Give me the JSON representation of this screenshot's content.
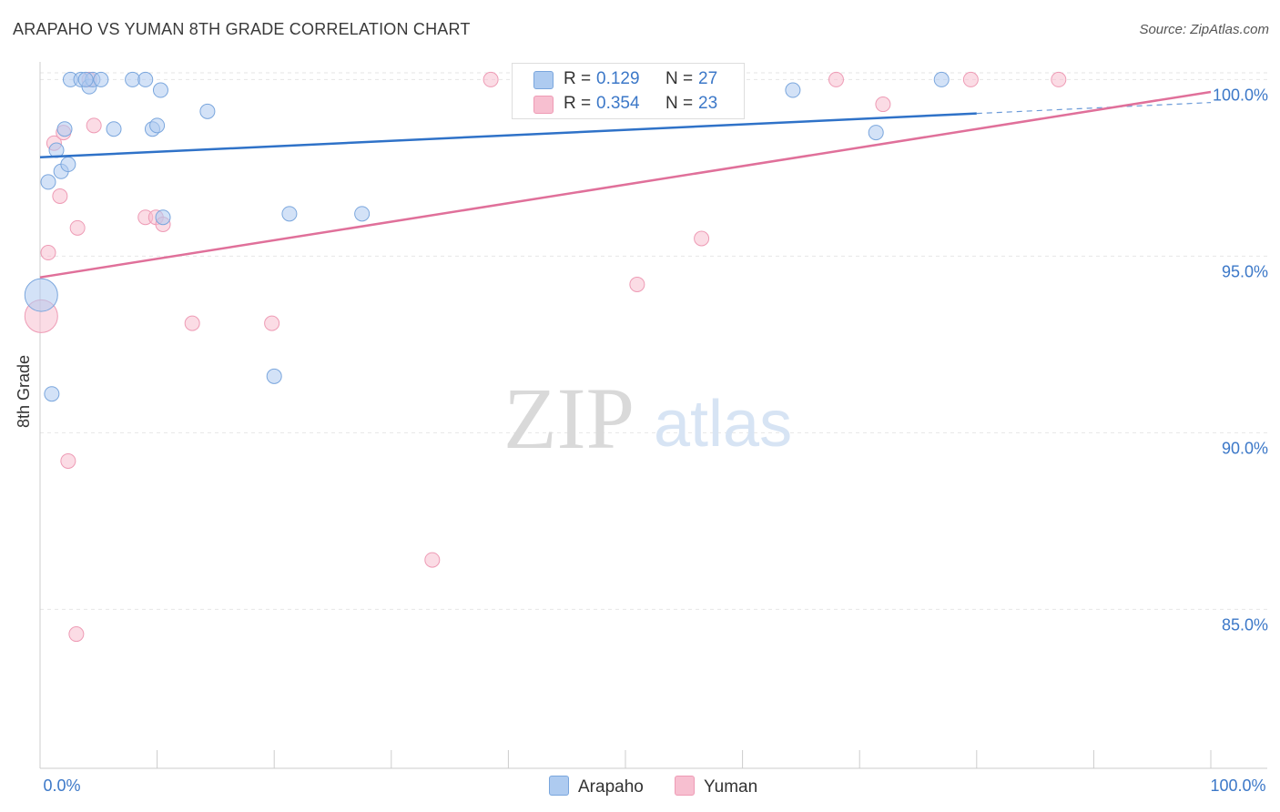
{
  "header": {
    "title": "ARAPAHO VS YUMAN 8TH GRADE CORRELATION CHART",
    "source": "Source: ZipAtlas.com"
  },
  "watermark": {
    "zip": "ZIP",
    "atlas": "atlas"
  },
  "legend": {
    "r_label": "R =",
    "n_label": "N =",
    "arapaho": {
      "r": "0.129",
      "n": "27"
    },
    "yuman": {
      "r": "0.354",
      "n": "23"
    }
  },
  "colors": {
    "arapaho_fill": "#aecbf0",
    "arapaho_stroke": "#7aa6dd",
    "arapaho_line": "#2f72c8",
    "yuman_fill": "#f7bfd0",
    "yuman_stroke": "#ee9bb5",
    "yuman_line": "#e0709a",
    "axis_text": "#3c78c8",
    "grid": "#e6e6e6"
  },
  "chart_data": {
    "type": "scatter",
    "title": "ARAPAHO VS YUMAN 8TH GRADE CORRELATION CHART",
    "xlabel": "",
    "ylabel": "8th Grade",
    "xlim": [
      0,
      100
    ],
    "ylim": [
      80.5,
      100.5
    ],
    "x_tick_labels": [
      "0.0%",
      "100.0%"
    ],
    "y_ticks": [
      85,
      90,
      95,
      100
    ],
    "y_tick_labels": [
      "85.0%",
      "90.0%",
      "95.0%",
      "100.0%"
    ],
    "series": [
      {
        "name": "Arapaho",
        "R": 0.129,
        "N": 27,
        "trend": {
          "x0": 0,
          "y0": 97.8,
          "x1": 100,
          "y1": 99.35,
          "solid_until_x": 80
        },
        "points": [
          {
            "x": 0.1,
            "y": 93.9,
            "big": true
          },
          {
            "x": 0.7,
            "y": 97.1
          },
          {
            "x": 1.0,
            "y": 91.1
          },
          {
            "x": 1.4,
            "y": 98.0
          },
          {
            "x": 1.8,
            "y": 97.4
          },
          {
            "x": 2.1,
            "y": 98.6
          },
          {
            "x": 2.4,
            "y": 97.6
          },
          {
            "x": 2.6,
            "y": 100.0
          },
          {
            "x": 3.5,
            "y": 100.0
          },
          {
            "x": 4.2,
            "y": 99.8
          },
          {
            "x": 4.5,
            "y": 100.0
          },
          {
            "x": 5.2,
            "y": 100.0
          },
          {
            "x": 6.3,
            "y": 98.6
          },
          {
            "x": 7.9,
            "y": 100.0
          },
          {
            "x": 9.0,
            "y": 100.0
          },
          {
            "x": 9.6,
            "y": 98.6
          },
          {
            "x": 10.0,
            "y": 98.7
          },
          {
            "x": 10.3,
            "y": 99.7
          },
          {
            "x": 10.5,
            "y": 96.1
          },
          {
            "x": 14.3,
            "y": 99.1
          },
          {
            "x": 20.0,
            "y": 91.6
          },
          {
            "x": 21.3,
            "y": 96.2
          },
          {
            "x": 27.5,
            "y": 96.2
          },
          {
            "x": 64.3,
            "y": 99.7
          },
          {
            "x": 71.4,
            "y": 98.5
          },
          {
            "x": 77.0,
            "y": 100.0
          },
          {
            "x": 3.9,
            "y": 100.0
          }
        ]
      },
      {
        "name": "Yuman",
        "R": 0.354,
        "N": 23,
        "trend": {
          "x0": 0,
          "y0": 94.4,
          "x1": 100,
          "y1": 99.65
        },
        "points": [
          {
            "x": 0.1,
            "y": 93.3,
            "big": true
          },
          {
            "x": 0.7,
            "y": 95.1
          },
          {
            "x": 1.2,
            "y": 98.2
          },
          {
            "x": 1.7,
            "y": 96.7
          },
          {
            "x": 2.0,
            "y": 98.5
          },
          {
            "x": 2.4,
            "y": 89.2
          },
          {
            "x": 3.1,
            "y": 84.3
          },
          {
            "x": 3.2,
            "y": 95.8
          },
          {
            "x": 4.2,
            "y": 100.0
          },
          {
            "x": 4.6,
            "y": 98.7
          },
          {
            "x": 9.0,
            "y": 96.1
          },
          {
            "x": 9.9,
            "y": 96.1
          },
          {
            "x": 10.5,
            "y": 95.9
          },
          {
            "x": 13.0,
            "y": 93.1
          },
          {
            "x": 19.8,
            "y": 93.1
          },
          {
            "x": 33.5,
            "y": 86.4
          },
          {
            "x": 38.5,
            "y": 100.0
          },
          {
            "x": 51.0,
            "y": 94.2
          },
          {
            "x": 56.5,
            "y": 95.5
          },
          {
            "x": 68.0,
            "y": 100.0
          },
          {
            "x": 72.0,
            "y": 99.3
          },
          {
            "x": 79.5,
            "y": 100.0
          },
          {
            "x": 87.0,
            "y": 100.0
          }
        ]
      }
    ],
    "legend_position": "top-center",
    "bottom_legend": [
      "Arapaho",
      "Yuman"
    ]
  }
}
